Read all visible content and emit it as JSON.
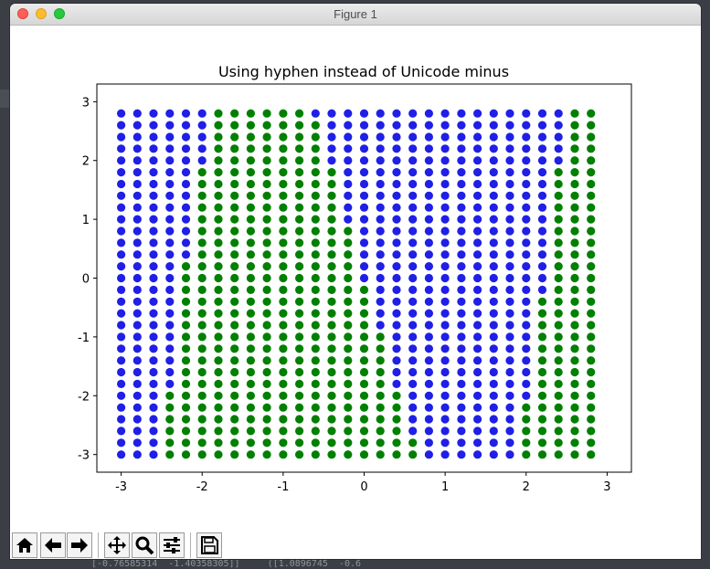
{
  "window": {
    "title": "Figure 1"
  },
  "toolbar": {
    "buttons": [
      {
        "name": "home-button",
        "icon": "home-icon"
      },
      {
        "name": "back-button",
        "icon": "arrow-left-icon"
      },
      {
        "name": "forward-button",
        "icon": "arrow-right-icon"
      },
      {
        "name": "pan-button",
        "icon": "move-icon"
      },
      {
        "name": "zoom-button",
        "icon": "magnifier-icon"
      },
      {
        "name": "configure-subplots-button",
        "icon": "sliders-icon"
      },
      {
        "name": "save-button",
        "icon": "floppy-icon"
      }
    ]
  },
  "background_text": "[-0.76585314  -1.40358305]]     ([1.0896745  -0.6",
  "chart_data": {
    "type": "scatter",
    "title": "Using hyphen instead of Unicode minus",
    "xlabel": "",
    "ylabel": "",
    "xlim": [
      -3.3,
      3.3
    ],
    "ylim": [
      -3.3,
      3.3
    ],
    "xticks": [
      "-3",
      "-2",
      "-1",
      "0",
      "1",
      "2",
      "3"
    ],
    "yticks": [
      "3",
      "2",
      "1",
      "0",
      "-1",
      "-2",
      "-3"
    ],
    "grid": false,
    "legend": "none",
    "x_range": {
      "start": -3.0,
      "stop": 3.0,
      "step": 0.2
    },
    "y_range": {
      "start": -3.0,
      "stop": 3.0,
      "step": 0.2
    },
    "series": [
      {
        "color": "#008000",
        "rule": "y < x^3 - 5x"
      },
      {
        "color": "#1f1fe6",
        "rule": "y >= x^3 - 5x"
      }
    ]
  }
}
